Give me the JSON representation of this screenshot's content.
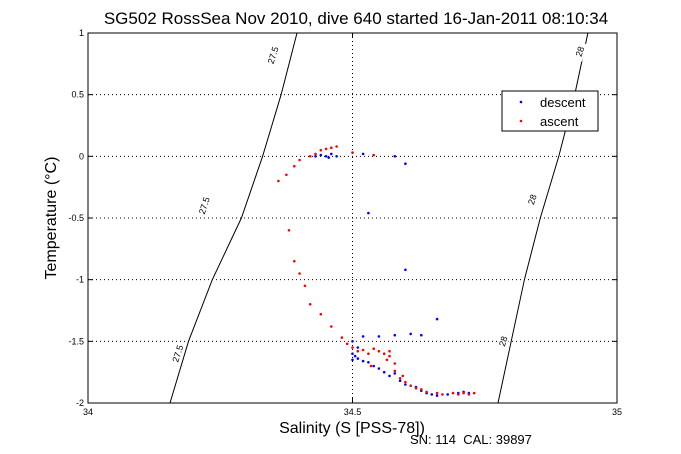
{
  "chart_data": {
    "type": "scatter",
    "title": "SG502 RossSea Nov 2010, dive 640 started 16-Jan-2011 08:10:34",
    "xlabel": "Salinity (S [PSS-78])",
    "ylabel": "Temperature (°C)",
    "xlim": [
      34,
      35
    ],
    "ylim": [
      -2,
      1
    ],
    "xticks": [
      "34",
      "34.5",
      "35"
    ],
    "yticks": [
      "1",
      "0.5",
      "0",
      "-0.5",
      "-1",
      "-1.5",
      "-2"
    ],
    "grid": true,
    "legend_position": "top-right",
    "footer": "SN: 114  CAL: 39897",
    "density_contours": [
      {
        "label": "27.5",
        "points": [
          [
            34.155,
            -2.0
          ],
          [
            34.19,
            -1.5
          ],
          [
            34.235,
            -1.0
          ],
          [
            34.29,
            -0.5
          ],
          [
            34.33,
            0.0
          ],
          [
            34.365,
            0.5
          ],
          [
            34.395,
            1.0
          ]
        ],
        "label_positions": [
          [
            34.17,
            -1.6
          ],
          [
            34.22,
            -0.4
          ],
          [
            34.35,
            0.82
          ]
        ]
      },
      {
        "label": "28",
        "points": [
          [
            34.775,
            -2.0
          ],
          [
            34.8,
            -1.5
          ],
          [
            34.825,
            -1.0
          ],
          [
            34.855,
            -0.5
          ],
          [
            34.89,
            0.0
          ],
          [
            34.92,
            0.5
          ],
          [
            34.945,
            1.0
          ]
        ],
        "label_positions": [
          [
            34.785,
            -1.5
          ],
          [
            34.84,
            -0.35
          ],
          [
            34.93,
            0.85
          ]
        ]
      }
    ],
    "series": [
      {
        "name": "descent",
        "color": "#0000ff",
        "points": [
          [
            34.43,
            0.0
          ],
          [
            34.44,
            0.01
          ],
          [
            34.45,
            0.0
          ],
          [
            34.46,
            0.02
          ],
          [
            34.47,
            0.0
          ],
          [
            34.455,
            -0.01
          ],
          [
            34.52,
            0.02
          ],
          [
            34.58,
            0.0
          ],
          [
            34.6,
            -0.06
          ],
          [
            34.53,
            -0.46
          ],
          [
            34.6,
            -0.92
          ],
          [
            34.66,
            -1.32
          ],
          [
            34.52,
            -1.46
          ],
          [
            34.55,
            -1.46
          ],
          [
            34.58,
            -1.45
          ],
          [
            34.61,
            -1.44
          ],
          [
            34.63,
            -1.45
          ],
          [
            34.5,
            -1.5
          ],
          [
            34.51,
            -1.55
          ],
          [
            34.5,
            -1.6
          ],
          [
            34.505,
            -1.62
          ],
          [
            34.51,
            -1.64
          ],
          [
            34.5,
            -1.65
          ],
          [
            34.52,
            -1.66
          ],
          [
            34.53,
            -1.67
          ],
          [
            34.54,
            -1.7
          ],
          [
            34.55,
            -1.72
          ],
          [
            34.56,
            -1.75
          ],
          [
            34.57,
            -1.78
          ],
          [
            34.58,
            -1.76
          ],
          [
            34.59,
            -1.82
          ],
          [
            34.6,
            -1.85
          ],
          [
            34.62,
            -1.87
          ],
          [
            34.63,
            -1.9
          ],
          [
            34.64,
            -1.92
          ],
          [
            34.65,
            -1.93
          ],
          [
            34.66,
            -1.94
          ],
          [
            34.68,
            -1.93
          ],
          [
            34.7,
            -1.92
          ],
          [
            34.71,
            -1.91
          ],
          [
            34.72,
            -1.92
          ]
        ]
      },
      {
        "name": "ascent",
        "color": "#ff0000",
        "points": [
          [
            34.44,
            0.05
          ],
          [
            34.45,
            0.06
          ],
          [
            34.46,
            0.07
          ],
          [
            34.47,
            0.08
          ],
          [
            34.43,
            0.02
          ],
          [
            34.42,
            0.0
          ],
          [
            34.4,
            -0.03
          ],
          [
            34.39,
            -0.08
          ],
          [
            34.375,
            -0.15
          ],
          [
            34.36,
            -0.2
          ],
          [
            34.38,
            -0.6
          ],
          [
            34.39,
            -0.85
          ],
          [
            34.4,
            -0.95
          ],
          [
            34.41,
            -1.05
          ],
          [
            34.42,
            -1.2
          ],
          [
            34.44,
            -1.28
          ],
          [
            34.46,
            -1.38
          ],
          [
            34.48,
            -1.47
          ],
          [
            34.49,
            -1.52
          ],
          [
            34.5,
            -1.55
          ],
          [
            34.51,
            -1.58
          ],
          [
            34.52,
            -1.57
          ],
          [
            34.53,
            -1.6
          ],
          [
            34.54,
            -1.56
          ],
          [
            34.55,
            -1.58
          ],
          [
            34.56,
            -1.6
          ],
          [
            34.57,
            -1.62
          ],
          [
            34.58,
            -1.68
          ],
          [
            34.58,
            -1.74
          ],
          [
            34.59,
            -1.8
          ],
          [
            34.6,
            -1.83
          ],
          [
            34.61,
            -1.86
          ],
          [
            34.62,
            -1.88
          ],
          [
            34.63,
            -1.89
          ],
          [
            34.64,
            -1.91
          ],
          [
            34.66,
            -1.92
          ],
          [
            34.67,
            -1.93
          ],
          [
            34.69,
            -1.92
          ],
          [
            34.7,
            -1.93
          ],
          [
            34.71,
            -1.92
          ],
          [
            34.72,
            -1.93
          ],
          [
            34.73,
            -1.92
          ],
          [
            34.5,
            0.03
          ],
          [
            34.54,
            0.01
          ],
          [
            34.535,
            -1.7
          ],
          [
            34.565,
            -1.65
          ],
          [
            34.57,
            -1.58
          ],
          [
            34.595,
            -1.78
          ]
        ]
      }
    ]
  }
}
